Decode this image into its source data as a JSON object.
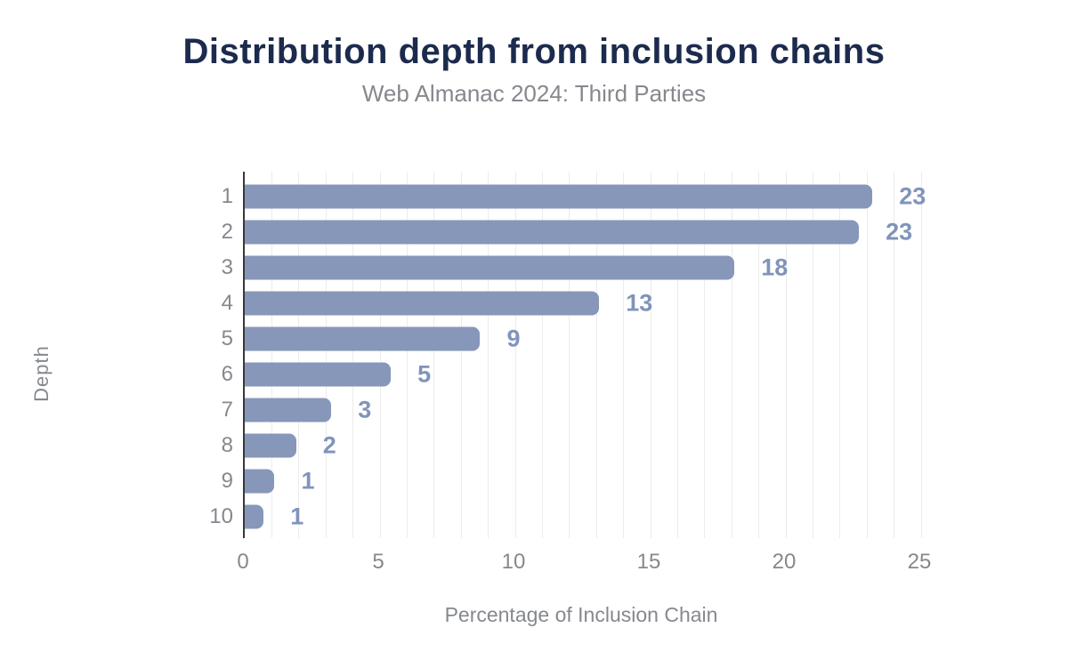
{
  "header": {
    "title": "Distribution depth from inclusion chains",
    "subtitle": "Web Almanac 2024: Third Parties"
  },
  "chart_data": {
    "type": "bar",
    "orientation": "horizontal",
    "title": "Distribution depth from inclusion chains",
    "subtitle": "Web Almanac 2024: Third Parties",
    "xlabel": "Percentage of Inclusion Chain",
    "ylabel": "Depth",
    "categories": [
      "1",
      "2",
      "3",
      "4",
      "5",
      "6",
      "7",
      "8",
      "9",
      "10"
    ],
    "values": [
      23.2,
      22.7,
      18.1,
      13.1,
      8.7,
      5.4,
      3.2,
      1.9,
      1.1,
      0.7
    ],
    "value_labels": [
      "23",
      "23",
      "18",
      "13",
      "9",
      "5",
      "3",
      "2",
      "1",
      "1"
    ],
    "xlim": [
      0,
      25
    ],
    "xticks": [
      "0",
      "5",
      "10",
      "15",
      "20",
      "25"
    ],
    "minor_grid_step": 1,
    "grid": true,
    "legend": "none",
    "colors": {
      "title": "#1c2b4d",
      "subtitle": "#85888d",
      "axis_text": "#85888d",
      "bar": "#8697b9",
      "value_label": "#8094ba",
      "gridline": "#ececec",
      "axis_line": "#38393b"
    }
  }
}
